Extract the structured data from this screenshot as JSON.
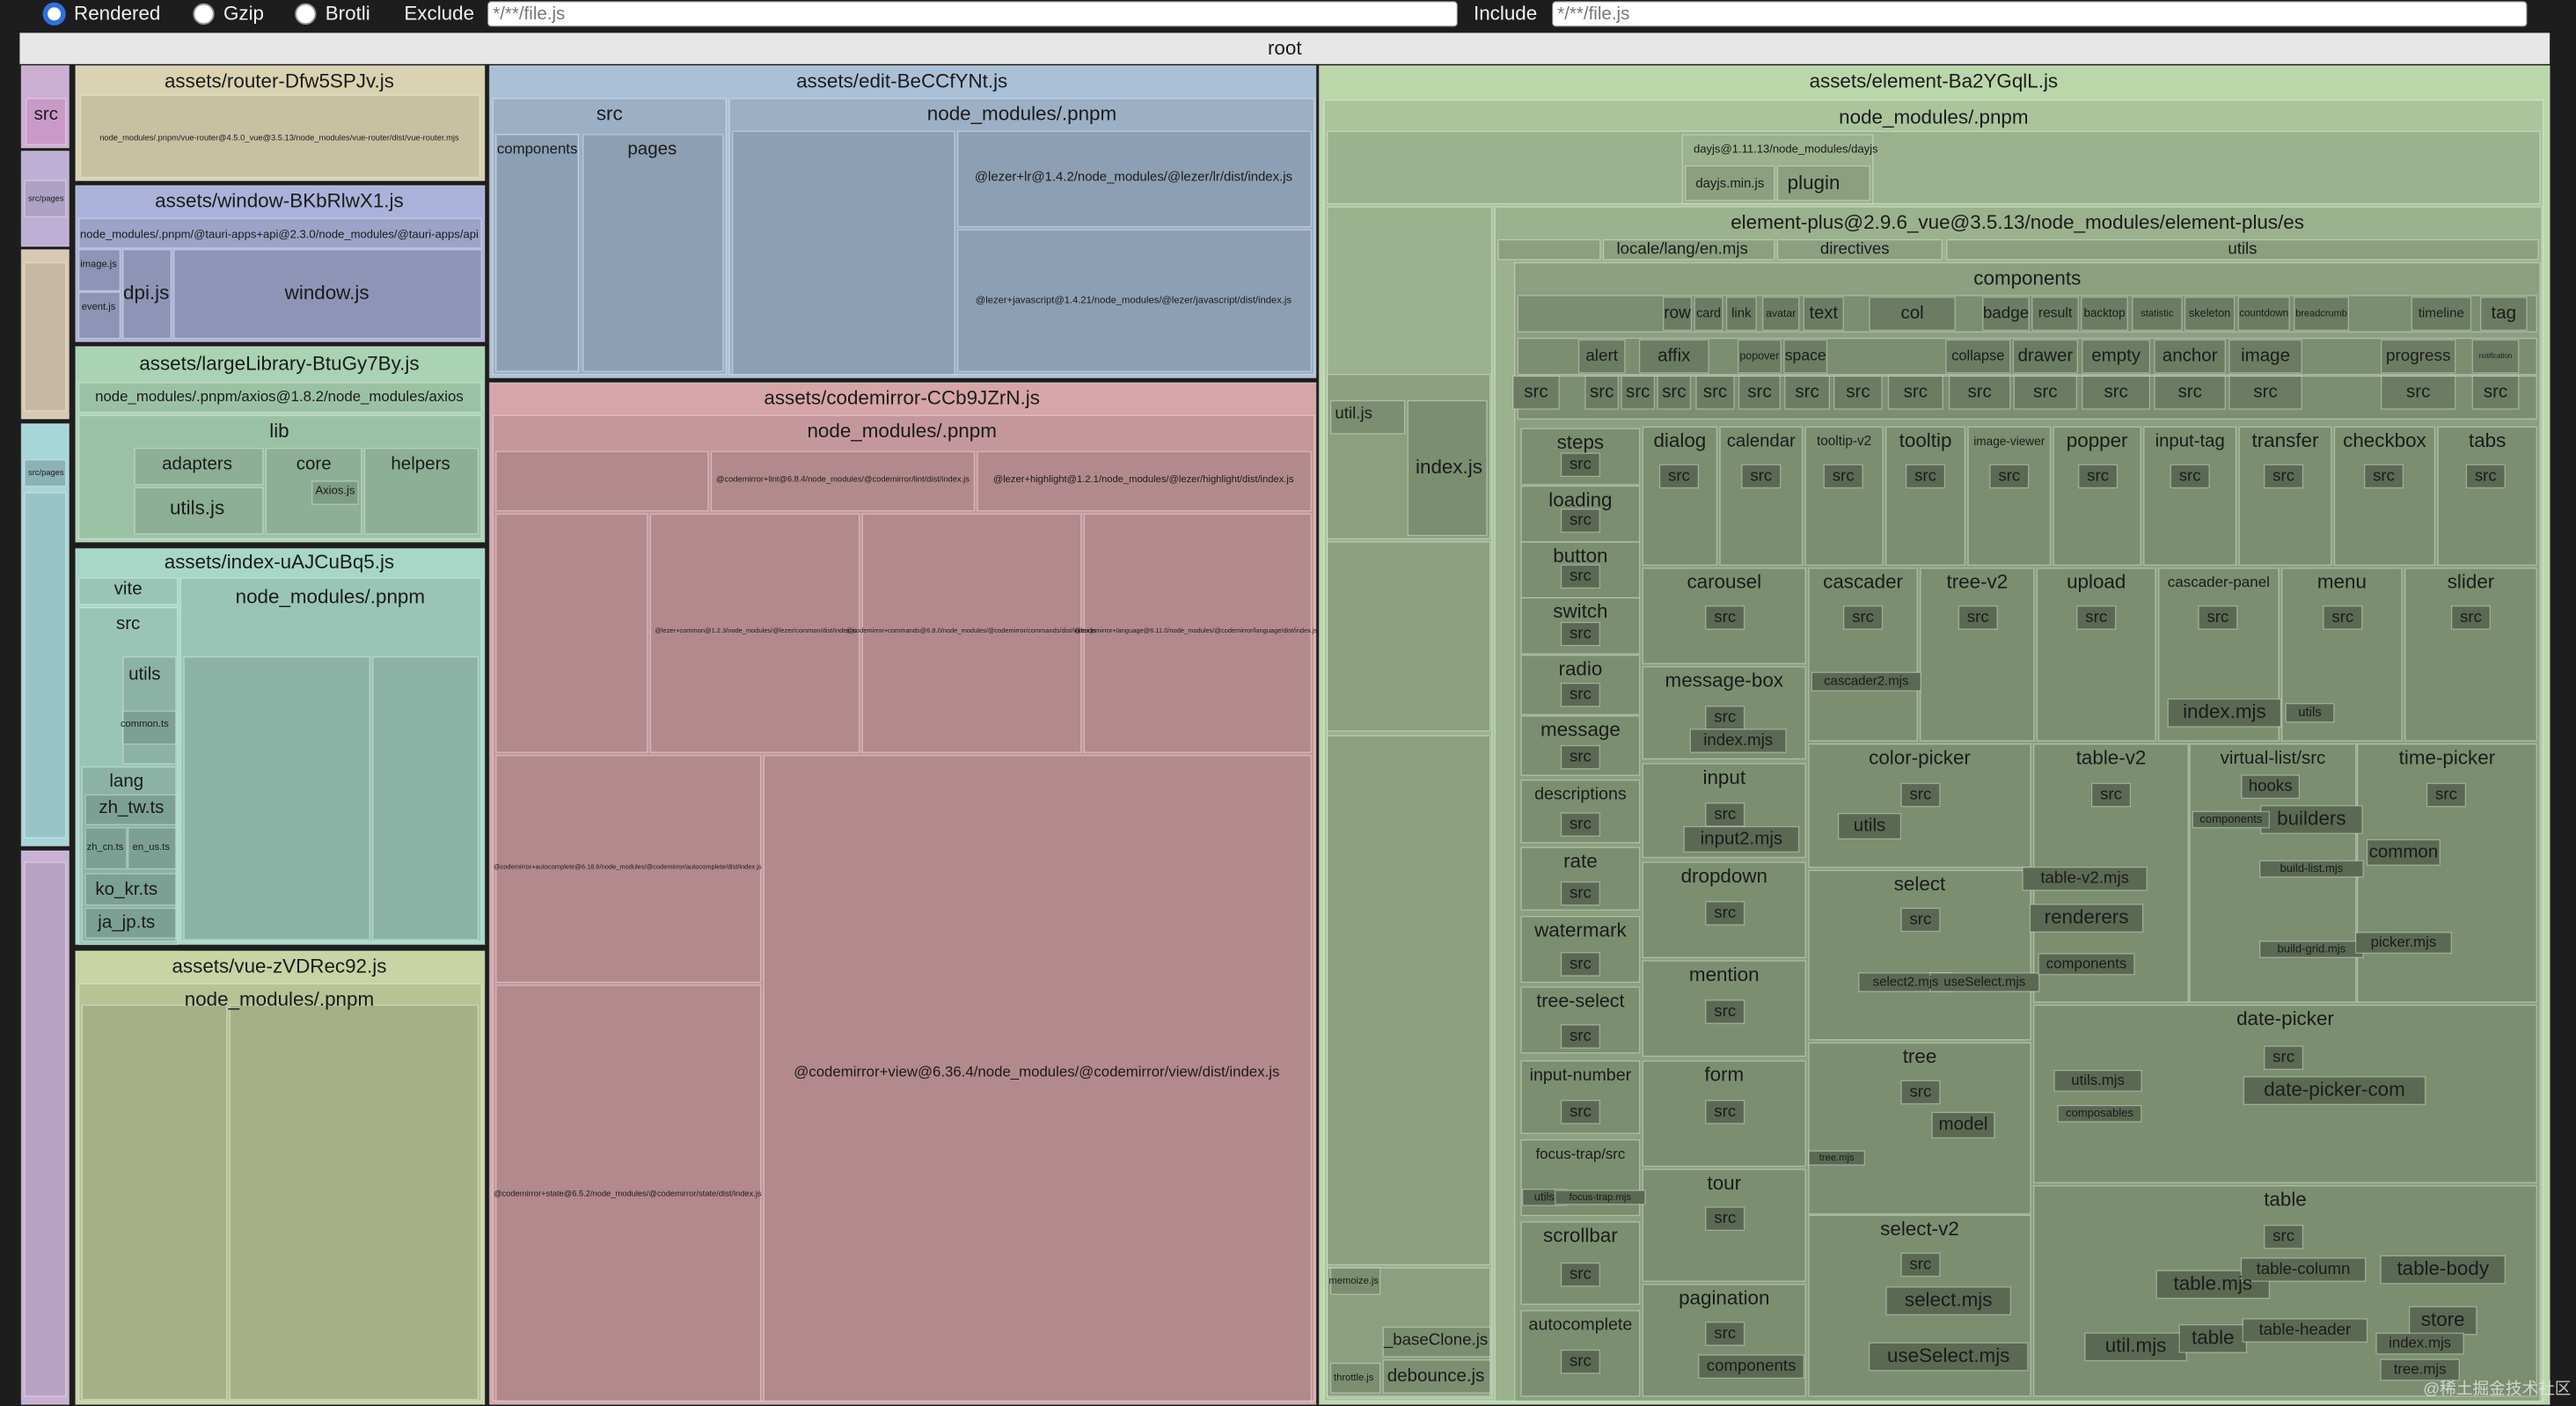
{
  "toolbar": {
    "options": [
      "Rendered",
      "Gzip",
      "Brotli"
    ],
    "exclude_label": "Exclude",
    "exclude_value": "*/**/file.js",
    "include_label": "Include",
    "include_value": "*/**/file.js"
  },
  "treemap": {
    "root": "root",
    "tiles": [
      {
        "label": "assets/router-Dfw5SPJv.js"
      },
      {
        "label": "node_modules/.pnpm/vue-router@4.5.0_vue@3.5.13/node_modules/vue-router/dist/vue-router.mjs"
      },
      {
        "label": "assets/window-BKbRlwX1.js"
      },
      {
        "label": "node_modules/.pnpm/@tauri-apps+api@2.3.0/node_modules/@tauri-apps/api"
      },
      {
        "label": "image.js"
      },
      {
        "label": "event.js"
      },
      {
        "label": "dpi.js"
      },
      {
        "label": "window.js"
      },
      {
        "label": "assets/largeLibrary-BtuGy7By.js"
      },
      {
        "label": "node_modules/.pnpm/axios@1.8.2/node_modules/axios"
      },
      {
        "label": "lib"
      },
      {
        "label": "adapters"
      },
      {
        "label": "utils.js"
      },
      {
        "label": "core"
      },
      {
        "label": "Axios.js"
      },
      {
        "label": "helpers"
      },
      {
        "label": "assets/index-uAJCuBq5.js"
      },
      {
        "label": "vite"
      },
      {
        "label": "src"
      },
      {
        "label": "utils"
      },
      {
        "label": "common.ts"
      },
      {
        "label": "lang"
      },
      {
        "label": "zh_tw.ts"
      },
      {
        "label": "zh_cn.ts"
      },
      {
        "label": "en_us.ts"
      },
      {
        "label": "ko_kr.ts"
      },
      {
        "label": "ja_jp.ts"
      },
      {
        "label": "node_modules/.pnpm"
      },
      {
        "label": "assets/vue-zVDRec92.js"
      },
      {
        "label": "node_modules/.pnpm"
      },
      {
        "label": "assets/edit-BeCCfYNt.js"
      },
      {
        "label": "src"
      },
      {
        "label": "components"
      },
      {
        "label": "pages"
      },
      {
        "label": "node_modules/.pnpm"
      },
      {
        "label": "@lezer+lr@1.4.2/node_modules/@lezer/lr/dist/index.js"
      },
      {
        "label": "@lezer+javascript@1.4.21/node_modules/@lezer/javascript/dist/index.js"
      },
      {
        "label": "assets/codemirror-CCb9JZrN.js"
      },
      {
        "label": "node_modules/.pnpm"
      },
      {
        "label": "@lezer+highlight@1.2.1/node_modules/@lezer/highlight/dist/index.js"
      },
      {
        "label": "@codemirror+lint@6.8.4/node_modules/@codemirror/lint/dist/index.js"
      },
      {
        "label": "@codemirror+view@6.36.4/node_modules/@codemirror/view/dist/index.js"
      },
      {
        "label": "@codemirror+autocomplete@6.18.6/node_modules/@codemirror/autocomplete/dist/index.js"
      },
      {
        "label": "@codemirror+state@6.5.2/node_modules/@codemirror/state/dist/index.js"
      },
      {
        "label": "@lezer+common@1.2.3/node_modules/@lezer/common/dist/index.js"
      },
      {
        "label": "@codemirror+commands@6.8.0/node_modules/@codemirror/commands/dist/index.js"
      },
      {
        "label": "@codemirror+language@6.11.0/node_modules/@codemirror/language/dist/index.js"
      },
      {
        "label": "assets/element-Ba2YGqlL.js"
      },
      {
        "label": "node_modules/.pnpm"
      },
      {
        "label": "dayjs@1.11.13/node_modules/dayjs"
      },
      {
        "label": "dayjs.min.js"
      },
      {
        "label": "plugin"
      },
      {
        "label": "util.js"
      },
      {
        "label": "index.js"
      },
      {
        "label": "element-plus@2.9.6_vue@3.5.13/node_modules/element-plus/es"
      },
      {
        "label": "locale/lang/en.mjs"
      },
      {
        "label": "directives"
      },
      {
        "label": "utils"
      },
      {
        "label": "components"
      },
      {
        "label": "_baseClone.js"
      },
      {
        "label": "debounce.js"
      },
      {
        "label": "memoize.js"
      },
      {
        "label": "throttle.js"
      },
      {
        "label": "src"
      },
      {
        "label": "src/pages"
      },
      {
        "label": "src/pages"
      }
    ],
    "component_rows": [
      [
        "row",
        "card",
        "link",
        "avatar",
        "text",
        "col",
        "badge",
        "result",
        "backtop",
        "statistic",
        "skeleton",
        "countdown",
        "breadcrumb",
        "timeline",
        "tag"
      ],
      [
        "alert",
        "affix",
        "popover",
        "space",
        "collapse",
        "drawer",
        "empty",
        "anchor",
        "image",
        "progress",
        "notification"
      ],
      [
        "src",
        "src",
        "src",
        "src",
        "src",
        "src",
        "src",
        "src",
        "src",
        "src",
        "src",
        "src",
        "src",
        "src",
        "src",
        "src"
      ]
    ],
    "components": [
      {
        "name": "steps",
        "parts": [
          "src"
        ]
      },
      {
        "name": "loading",
        "parts": [
          "src"
        ]
      },
      {
        "name": "button",
        "parts": [
          "src"
        ]
      },
      {
        "name": "switch",
        "parts": [
          "src"
        ]
      },
      {
        "name": "radio",
        "parts": [
          "src"
        ]
      },
      {
        "name": "message",
        "parts": [
          "src"
        ]
      },
      {
        "name": "descriptions",
        "parts": [
          "src"
        ]
      },
      {
        "name": "rate",
        "parts": [
          "src"
        ]
      },
      {
        "name": "watermark",
        "parts": [
          "src"
        ]
      },
      {
        "name": "tree-select",
        "parts": [
          "src"
        ]
      },
      {
        "name": "input-number",
        "parts": [
          "src"
        ]
      },
      {
        "name": "focus-trap/src",
        "parts": [
          "utils",
          "focus-trap.mjs"
        ]
      },
      {
        "name": "scrollbar",
        "parts": [
          "src"
        ]
      },
      {
        "name": "autocomplete",
        "parts": [
          "src"
        ]
      },
      {
        "name": "dialog",
        "parts": [
          "src"
        ]
      },
      {
        "name": "calendar",
        "parts": [
          "src"
        ]
      },
      {
        "name": "tooltip-v2",
        "parts": [
          "src"
        ]
      },
      {
        "name": "tooltip",
        "parts": [
          "src"
        ]
      },
      {
        "name": "image-viewer",
        "parts": [
          "src"
        ]
      },
      {
        "name": "popper",
        "parts": [
          "src"
        ]
      },
      {
        "name": "input-tag",
        "parts": [
          "src"
        ]
      },
      {
        "name": "transfer",
        "parts": [
          "src"
        ]
      },
      {
        "name": "checkbox",
        "parts": [
          "src"
        ]
      },
      {
        "name": "tabs",
        "parts": [
          "src"
        ]
      },
      {
        "name": "carousel",
        "parts": [
          "src"
        ]
      },
      {
        "name": "cascader",
        "parts": [
          "src",
          "cascader2.mjs"
        ]
      },
      {
        "name": "tree-v2",
        "parts": [
          "src"
        ]
      },
      {
        "name": "upload",
        "parts": [
          "src"
        ]
      },
      {
        "name": "cascader-panel",
        "parts": [
          "src",
          "index.mjs"
        ]
      },
      {
        "name": "menu",
        "parts": [
          "src",
          "utils"
        ]
      },
      {
        "name": "slider",
        "parts": [
          "src"
        ]
      },
      {
        "name": "message-box",
        "parts": [
          "src",
          "index.mjs"
        ]
      },
      {
        "name": "input",
        "parts": [
          "src",
          "input2.mjs"
        ]
      },
      {
        "name": "dropdown",
        "parts": [
          "src"
        ]
      },
      {
        "name": "mention",
        "parts": [
          "src"
        ]
      },
      {
        "name": "form",
        "parts": [
          "src"
        ]
      },
      {
        "name": "tour",
        "parts": [
          "src"
        ]
      },
      {
        "name": "pagination",
        "parts": [
          "src",
          "components"
        ]
      },
      {
        "name": "color-picker",
        "parts": [
          "src",
          "utils"
        ]
      },
      {
        "name": "select",
        "parts": [
          "src",
          "select2.mjs",
          "useSelect.mjs"
        ]
      },
      {
        "name": "tree",
        "parts": [
          "src",
          "model",
          "tree.mjs"
        ]
      },
      {
        "name": "select-v2",
        "parts": [
          "src",
          "select.mjs",
          "useSelect.mjs"
        ]
      },
      {
        "name": "table-v2",
        "parts": [
          "src",
          "table-v2.mjs",
          "renderers",
          "components"
        ]
      },
      {
        "name": "virtual-list/src",
        "parts": [
          "hooks",
          "builders",
          "components",
          "build-list.mjs",
          "build-grid.mjs"
        ]
      },
      {
        "name": "time-picker",
        "parts": [
          "src",
          "common",
          "picker.mjs"
        ]
      },
      {
        "name": "date-picker",
        "parts": [
          "src",
          "utils.mjs",
          "date-picker-com",
          "composables"
        ]
      },
      {
        "name": "table",
        "parts": [
          "src",
          "table.mjs",
          "table-column",
          "table-body",
          "util.mjs",
          "table",
          "table-header",
          "store",
          "index.mjs",
          "tree.mjs"
        ]
      }
    ]
  },
  "watermark": "@稀土掘金技术社区"
}
